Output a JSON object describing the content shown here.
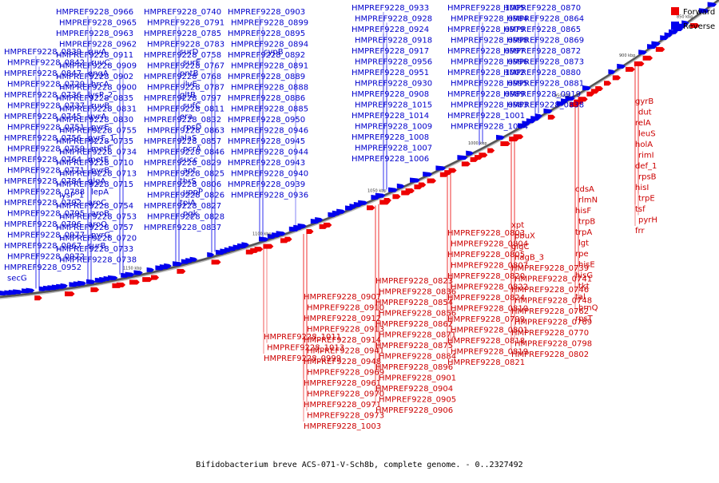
{
  "caption": "Bifidobacterium breve ACS-071-V-Sch8b, complete genome. - 0..2327492",
  "legend": [
    {
      "name": "Forward",
      "color": "#ee0000"
    },
    {
      "name": "Reverse",
      "color": "#0000ee"
    }
  ],
  "ticks": [
    "850 kbp",
    "900 kbp",
    "950 kbp",
    "1000 kbp",
    "1050 kbp",
    "1100 kbp",
    "1150 kbp"
  ],
  "labels": {
    "reverse": [
      "HMPREF9228_0966",
      "HMPREF9228_0965",
      "HMPREF9228_0963",
      "HMPREF9228_0962",
      "HMPREF9228_0911",
      "HMPREF9228_0909",
      "HMPREF9228_0902",
      "HMPREF9228_0900",
      "HMPREF9228_0835",
      "HMPREF9228_0831",
      "HMPREF9228_0830",
      "HMPREF9228_0755",
      "HMPREF9228_0735",
      "HMPREF9228_0734",
      "HMPREF9228_0710",
      "HMPREF9228_0713",
      "HMPREF9228_0715",
      "lysP_1",
      "HMPREF9228_0754",
      "HMPREF9228_0753",
      "HMPREF9228_0757",
      "HMPREF9228_0720",
      "HMPREF9228_0733",
      "HMPREF9228_0738",
      "HMPREF9228_0740",
      "HMPREF9228_0791",
      "HMPREF9228_0785",
      "HMPREF9228_0783",
      "HMPREF9228_0758",
      "HMPREF9228_0767",
      "HMPREF9228_0768",
      "HMPREF9228_0787",
      "HMPREF9228_0797",
      "HMPREF9228_0811",
      "HMPREF9228_0832",
      "HMPREF9228_0863",
      "HMPREF9228_0857",
      "HMPREF9228_0846",
      "HMPREF9228_0829",
      "HMPREF9228_0825",
      "HMPREF9228_0806",
      "HMPREF9228_0826",
      "HMPREF9228_0827",
      "HMPREF9228_0828",
      "HMPREF9228_0837",
      "HMPREF9228_0903",
      "HMPREF9228_0899",
      "HMPREF9228_0895",
      "HMPREF9228_0894",
      "HMPREF9228_0892",
      "HMPREF9228_0891",
      "HMPREF9228_0889",
      "HMPREF9228_0888",
      "HMPREF9228_0886",
      "HMPREF9228_0885",
      "HMPREF9228_0950",
      "HMPREF9228_0946",
      "HMPREF9228_0945",
      "HMPREF9228_0944",
      "HMPREF9228_0943",
      "HMPREF9228_0940",
      "HMPREF9228_0939",
      "HMPREF9228_0936",
      "HMPREF9228_0933",
      "HMPREF9228_0928",
      "HMPREF9228_0924",
      "HMPREF9228_0918",
      "HMPREF9228_0917",
      "HMPREF9228_0956",
      "HMPREF9228_0951",
      "HMPREF9228_0930",
      "HMPREF9228_0908",
      "HMPREF9228_1015",
      "HMPREF9228_1014",
      "HMPREF9228_1009",
      "HMPREF9228_1008",
      "HMPREF9228_1007",
      "HMPREF9228_1006",
      "HMPREF9228_1005",
      "HMPREF9228_0984",
      "HMPREF9228_0979",
      "HMPREF9228_0998",
      "HMPREF9228_0997",
      "HMPREF9228_0996",
      "HMPREF9228_1002",
      "HMPREF9228_0995",
      "HMPREF9228_0989",
      "HMPREF9228_0983",
      "HMPREF9228_1001",
      "HMPREF9228_1004",
      "HMPREF9228_0870",
      "HMPREF9228_0864",
      "HMPREF9228_0865",
      "HMPREF9228_0869",
      "HMPREF9228_0872",
      "HMPREF9228_0873",
      "HMPREF9228_0880",
      "HMPREF9228_0881",
      "HMPREF9228_0919",
      "HMPREF9228_0838",
      "HMPREF9228_0839",
      "HMPREF9228_0842",
      "HMPREF9228_0847",
      "HMPREF9228_0729",
      "HMPREF9228_0736",
      "HMPREF9228_0737",
      "HMPREF9228_0745",
      "HMPREF9228_0751",
      "HMPREF9228_0756",
      "HMPREF9228_0759",
      "HMPREF9228_0764",
      "HMPREF9228_0771",
      "HMPREF9228_0784",
      "HMPREF9228_0788",
      "HMPREF9228_0792",
      "HMPREF9228_0795",
      "HMPREF9228_0796",
      "HMPREF9228_0977",
      "HMPREF9228_0967",
      "HMPREF9228_0972",
      "HMPREF9228_0952",
      "secG",
      "ruvA",
      "ruvC",
      "engA",
      "hrcA",
      "lysP_2",
      "ruvB",
      "uvrA",
      "pyrE",
      "pyrF_1",
      "metF",
      "metE",
      "pyrB",
      "glgA",
      "lepA",
      "aroC",
      "aroB",
      "aroQ",
      "pyrG",
      "surB",
      "surD",
      "surE",
      "pntB",
      "ilvE",
      "gltB",
      "sufC",
      "era",
      "rpsD",
      "alaS",
      "pcrA",
      "succ",
      "apt",
      "thrS",
      "uppP",
      "tpiA",
      "pgk",
      "cypB"
    ],
    "forward": [
      "gyrB",
      "dut",
      "relA",
      "leuS",
      "holA",
      "rimI",
      "def_1",
      "rpsB",
      "hisI",
      "trpE",
      "tsf",
      "pyrH",
      "frr",
      "cdsA",
      "rlmN",
      "hisF",
      "trpB",
      "trpA",
      "lgt",
      "rpe",
      "hisE",
      "hisG",
      "tkt",
      "tal",
      "brnQ",
      "rpsT",
      "xpt",
      "pbuX",
      "glgC",
      "nagB_3",
      "HMPREF9228_0739",
      "HMPREF9228_0741",
      "HMPREF9228_0746",
      "HMPREF9228_0748",
      "HMPREF9228_0762",
      "HMPREF9228_0769",
      "HMPREF9228_0770",
      "HMPREF9228_0798",
      "HMPREF9228_0802",
      "HMPREF9228_0803",
      "HMPREF9228_0804",
      "HMPREF9228_0805",
      "HMPREF9228_0807",
      "HMPREF9228_0820",
      "HMPREF9228_0822",
      "HMPREF9228_0824",
      "HMPREF9228_0810",
      "HMPREF9228_0799",
      "HMPREF9228_0801",
      "HMPREF9228_0818",
      "HMPREF9228_0819",
      "HMPREF9228_0821",
      "HMPREF9228_0823",
      "HMPREF9228_0836",
      "HMPREF9228_0854",
      "HMPREF9228_0856",
      "HMPREF9228_0862",
      "HMPREF9228_0871",
      "HMPREF9228_0875",
      "HMPREF9228_0884",
      "HMPREF9228_0896",
      "HMPREF9228_0901",
      "HMPREF9228_0904",
      "HMPREF9228_0905",
      "HMPREF9228_0906",
      "HMPREF9228_0907",
      "HMPREF9228_0910",
      "HMPREF9228_0912",
      "HMPREF9228_0913",
      "HMPREF9228_0914",
      "HMPREF9228_0941",
      "HMPREF9228_0948",
      "HMPREF9228_0969",
      "HMPREF9228_0961",
      "HMPREF9228_0970",
      "HMPREF9228_0971",
      "HMPREF9228_0973",
      "HMPREF9228_1003",
      "HMPREF9228_1011",
      "HMPREF9228_1013",
      "HMPREF9228_0999"
    ]
  }
}
